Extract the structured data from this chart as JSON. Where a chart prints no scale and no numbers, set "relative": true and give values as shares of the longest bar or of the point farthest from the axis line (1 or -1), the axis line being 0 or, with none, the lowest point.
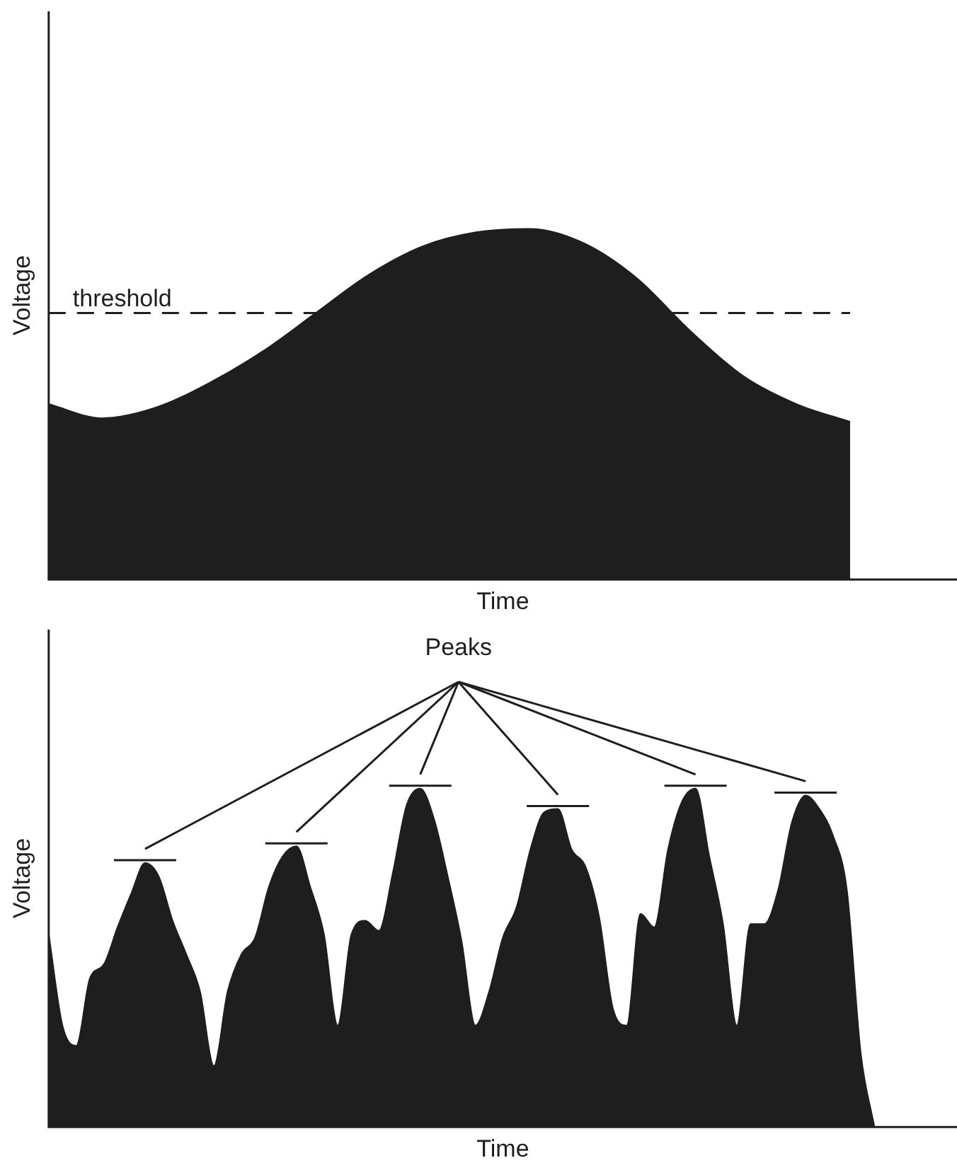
{
  "chart_data": [
    {
      "type": "area",
      "relative": true,
      "xlabel": "Time",
      "ylabel": "Voltage",
      "color": "#1e1e1e",
      "categories": [
        null,
        null,
        null,
        null,
        null,
        null,
        null,
        null,
        null,
        null,
        null,
        null,
        null,
        null,
        null,
        null,
        null,
        null
      ],
      "values": [
        0.5,
        0.46,
        0.49,
        0.56,
        0.65,
        0.76,
        0.87,
        0.95,
        0.99,
        1.0,
        0.96,
        0.86,
        0.71,
        0.58,
        0.5,
        0.45,
        null,
        null
      ],
      "ref_lines": [
        {
          "axis": "y",
          "value": 0.76,
          "label": "threshold",
          "line_style": "dashed",
          "color": "#1e1e1e"
        }
      ]
    },
    {
      "type": "area",
      "relative": true,
      "xlabel": "Time",
      "ylabel": "Voltage",
      "color": "#1e1e1e",
      "annotations": [
        "Peaks"
      ],
      "categories": [
        null,
        null,
        null,
        null,
        null,
        null,
        null,
        null,
        null,
        null,
        null,
        null,
        null,
        null,
        null,
        null,
        null,
        null,
        null,
        null,
        null,
        null,
        null,
        null,
        null,
        null,
        null,
        null,
        null,
        null,
        null,
        null,
        null,
        null,
        null,
        null,
        null,
        null,
        null,
        null,
        null,
        null,
        null,
        null,
        null,
        null,
        null,
        null,
        null,
        null,
        null,
        null,
        null,
        null,
        null,
        null,
        null,
        null,
        null,
        null,
        null,
        null,
        null,
        null,
        null,
        null,
        null
      ],
      "values": [
        0.57,
        0.3,
        0.24,
        0.44,
        0.48,
        0.59,
        0.69,
        0.78,
        0.74,
        0.61,
        0.51,
        0.4,
        0.18,
        0.4,
        0.51,
        0.56,
        0.71,
        0.8,
        0.83,
        0.71,
        0.57,
        0.3,
        0.57,
        0.61,
        0.58,
        0.75,
        0.95,
        1.0,
        0.91,
        0.74,
        0.55,
        0.3,
        0.4,
        0.56,
        0.65,
        0.82,
        0.93,
        0.94,
        0.82,
        0.77,
        0.62,
        0.35,
        0.3,
        0.63,
        0.59,
        0.82,
        0.96,
        1.0,
        0.8,
        0.6,
        0.3,
        0.6,
        0.6,
        0.7,
        0.9,
        0.98,
        0.94,
        0.86,
        0.7,
        0.22,
        0,
        null,
        null,
        null,
        null,
        null,
        null
      ]
    }
  ]
}
